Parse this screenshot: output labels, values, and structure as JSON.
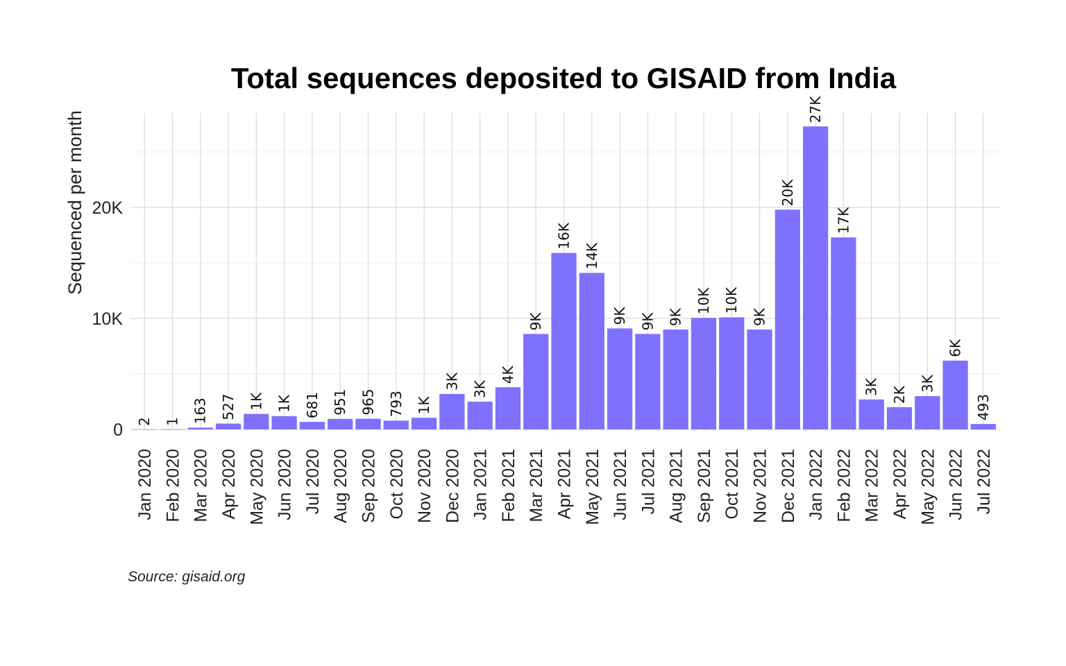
{
  "chart_data": {
    "type": "bar",
    "title": "Total sequences deposited to GISAID from India",
    "xlabel": "",
    "ylabel": "Sequenced per month",
    "source": "Source: gisaid.org",
    "bar_color": "#8070FE",
    "ylim": [
      0,
      28500
    ],
    "yticks": [
      0,
      10000,
      20000
    ],
    "ytick_labels": [
      "0",
      "10K",
      "20K"
    ],
    "grid": true,
    "categories": [
      "Jan 2020",
      "Feb 2020",
      "Mar 2020",
      "Apr 2020",
      "May 2020",
      "Jun 2020",
      "Jul 2020",
      "Aug 2020",
      "Sep 2020",
      "Oct 2020",
      "Nov 2020",
      "Dec 2020",
      "Jan 2021",
      "Feb 2021",
      "Mar 2021",
      "Apr 2021",
      "May 2021",
      "Jun 2021",
      "Jul 2021",
      "Aug 2021",
      "Sep 2021",
      "Oct 2021",
      "Nov 2021",
      "Dec 2021",
      "Jan 2022",
      "Feb 2022",
      "Mar 2022",
      "Apr 2022",
      "May 2022",
      "Jun 2022",
      "Jul 2022"
    ],
    "values": [
      2,
      1,
      163,
      527,
      1400,
      1200,
      681,
      951,
      965,
      793,
      1050,
      3200,
      2500,
      3800,
      8600,
      15900,
      14100,
      9100,
      8600,
      9000,
      10050,
      10100,
      9000,
      19800,
      27300,
      17300,
      2700,
      2000,
      3000,
      6200,
      493
    ],
    "labels": [
      "2",
      "1",
      "163",
      "527",
      "1K",
      "1K",
      "681",
      "951",
      "965",
      "793",
      "1K",
      "3K",
      "3K",
      "4K",
      "9K",
      "16K",
      "14K",
      "9K",
      "9K",
      "9K",
      "10K",
      "10K",
      "9K",
      "20K",
      "27K",
      "17K",
      "3K",
      "2K",
      "3K",
      "6K",
      "493"
    ]
  }
}
